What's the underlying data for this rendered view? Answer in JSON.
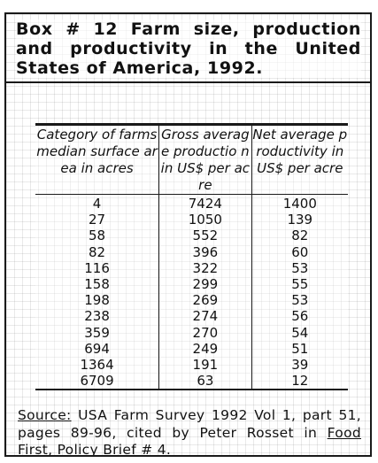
{
  "box": {
    "title": "Box #  12 Farm size, production and productivity in the United States of America, 1992."
  },
  "table": {
    "headers": [
      "Category of farms median surface area in acres",
      "Gross average productio n in US$ per acre",
      "Net average productivity in US$ per acre"
    ],
    "rows": [
      [
        "4",
        "7424",
        "1400"
      ],
      [
        "27",
        "1050",
        "139"
      ],
      [
        "58",
        "552",
        "82"
      ],
      [
        "82",
        "396",
        "60"
      ],
      [
        "116",
        "322",
        "53"
      ],
      [
        "158",
        "299",
        "55"
      ],
      [
        "198",
        "269",
        "53"
      ],
      [
        "238",
        "274",
        "56"
      ],
      [
        "359",
        "270",
        "54"
      ],
      [
        "694",
        "249",
        "51"
      ],
      [
        "1364",
        "191",
        "39"
      ],
      [
        "6709",
        "63",
        "12"
      ]
    ]
  },
  "source": {
    "label": "Source:",
    "text": " USA Farm Survey 1992 Vol 1, part 51, pages 89-96, cited by Peter Rosset in ",
    "publication": "Food First",
    "suffix": ", Policy Brief # 4."
  }
}
